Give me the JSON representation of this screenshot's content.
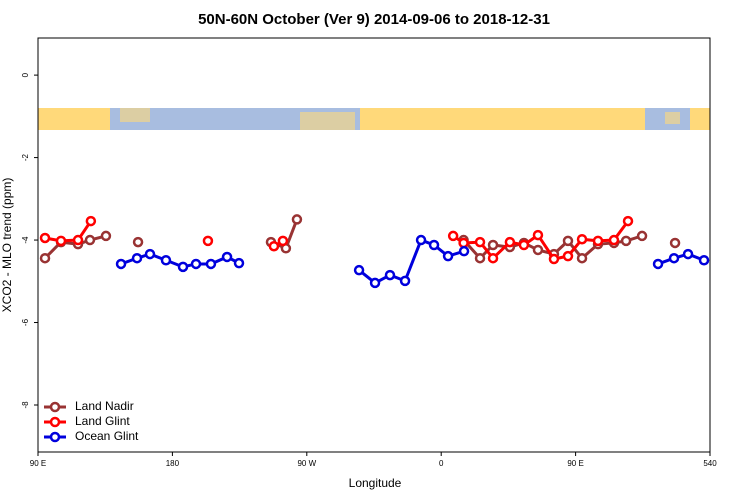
{
  "chart_data": {
    "type": "line",
    "title": "50N-60N October (Ver 9)   2014-09-06 to 2018-12-31",
    "xlabel": "Longitude",
    "ylabel": "XCO2 - MLO trend (ppm)",
    "xlim": [
      90,
      540
    ],
    "ylim": [
      -9.14,
      0.9
    ],
    "xticks": [
      {
        "value": 90,
        "label": "90 E"
      },
      180,
      {
        "value": 270,
        "label": "90 W"
      },
      {
        "value": 360,
        "label": "0"
      },
      {
        "value": 450,
        "label": "90 E"
      },
      540
    ],
    "yticks": [
      0,
      -2,
      -4,
      -6,
      -8
    ],
    "grid": false,
    "legend": "bottom-left",
    "series": [
      {
        "name": "Land Nadir",
        "color": "#993333",
        "x": [
          94.7,
          105.4,
          116.8,
          124.8,
          135.5,
          null,
          157,
          null,
          246,
          256,
          263.4,
          null,
          375,
          386,
          394.7,
          406,
          415.4,
          424.8,
          435.5,
          444.9,
          454.3,
          465,
          475.7,
          483.8,
          494.5,
          null,
          516.6
        ],
        "values": [
          -4.44,
          -4.05,
          -4.1,
          -4.0,
          -3.9,
          null,
          -4.05,
          null,
          -4.05,
          -4.2,
          -3.5,
          null,
          -4.0,
          -4.44,
          -4.12,
          -4.17,
          -4.07,
          -4.24,
          -4.34,
          -4.02,
          -4.44,
          -4.1,
          -4.07,
          -4.02,
          -3.9,
          null,
          -4.07
        ]
      },
      {
        "name": "Land Glint",
        "color": "#ff0000",
        "x": [
          94.7,
          105.4,
          116.8,
          125.4,
          null,
          203.8,
          null,
          248,
          254,
          null,
          368,
          375,
          386,
          394.7,
          406,
          415.4,
          424.8,
          435.5,
          444.9,
          454.3,
          465,
          475.7,
          485.1
        ],
        "values": [
          -3.95,
          -4.02,
          -4.0,
          -3.54,
          null,
          -4.02,
          null,
          -4.15,
          -4.02,
          null,
          -3.9,
          -4.07,
          -4.05,
          -4.44,
          -4.05,
          -4.12,
          -3.88,
          -4.46,
          -4.39,
          -3.98,
          -4.02,
          -4.0,
          -3.54
        ]
      },
      {
        "name": "Ocean Glint",
        "color": "#0000dd",
        "x": [
          145.6,
          156.3,
          165,
          175.7,
          187.1,
          195.8,
          205.8,
          216.6,
          224.6,
          null,
          305,
          315.7,
          325.7,
          335.8,
          346.5,
          355.2,
          364.6,
          375.3,
          null,
          505.2,
          515.9,
          525.3,
          536
        ],
        "values": [
          -4.58,
          -4.44,
          -4.34,
          -4.49,
          -4.65,
          -4.58,
          -4.58,
          -4.41,
          -4.56,
          null,
          -4.73,
          -5.04,
          -4.85,
          -4.99,
          -4.0,
          -4.12,
          -4.39,
          -4.27,
          null,
          -4.58,
          -4.44,
          -4.34,
          -4.49
        ]
      }
    ]
  }
}
